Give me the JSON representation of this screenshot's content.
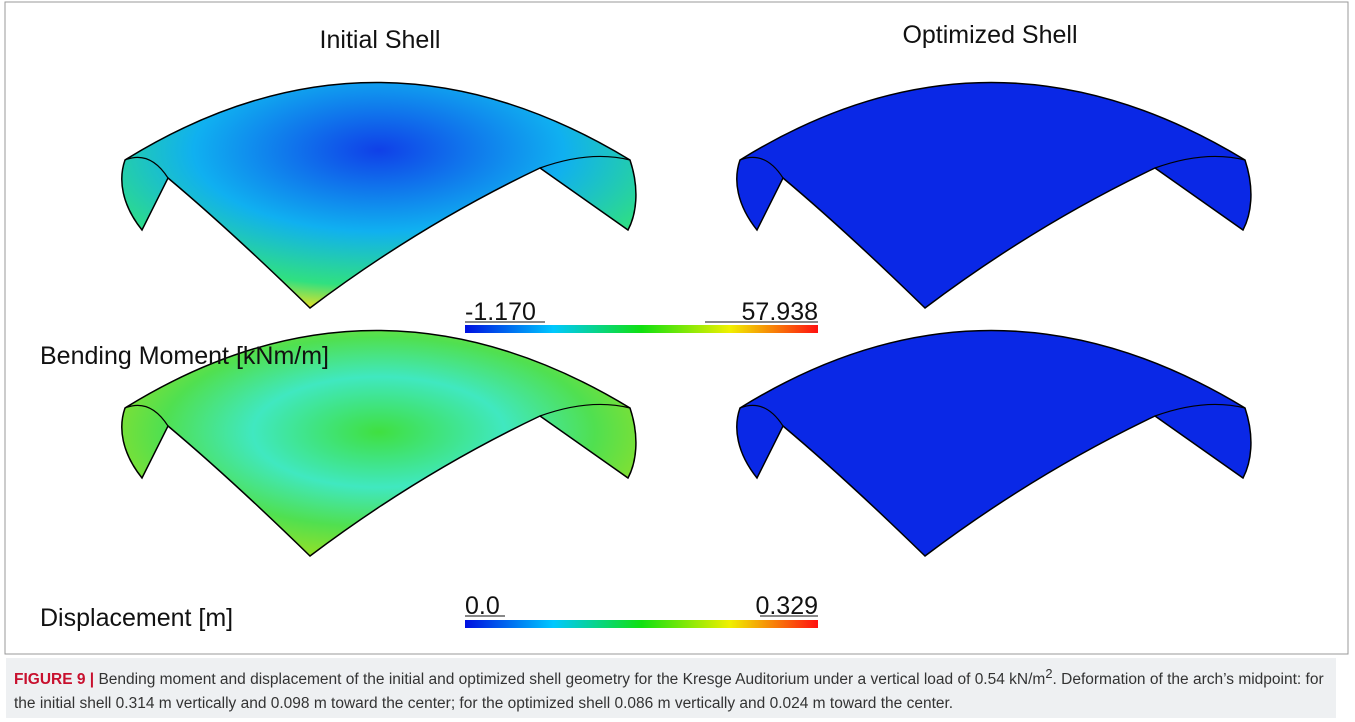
{
  "figure": {
    "column_titles": [
      "Initial Shell",
      "Optimized Shell"
    ],
    "rows": [
      {
        "label": "Bending Moment [kNm/m]",
        "colorbar_min": "-1.170",
        "colorbar_max": "57.938"
      },
      {
        "label": "Displacement [m]",
        "colorbar_min": "0.0",
        "colorbar_max": "0.329"
      }
    ]
  },
  "caption": {
    "label": "FIGURE 9 |",
    "text": [
      " Bending moment and displacement of the initial and optimized shell geometry for the Kresge Auditorium under a vertical load of 0.54 kN/m",
      "2",
      ". Deformation of the arch’s midpoint: for the initial shell 0.314 m vertically and 0.098 m toward the center; for the optimized shell 0.086 m vertically and 0.024 m toward the center."
    ]
  }
}
